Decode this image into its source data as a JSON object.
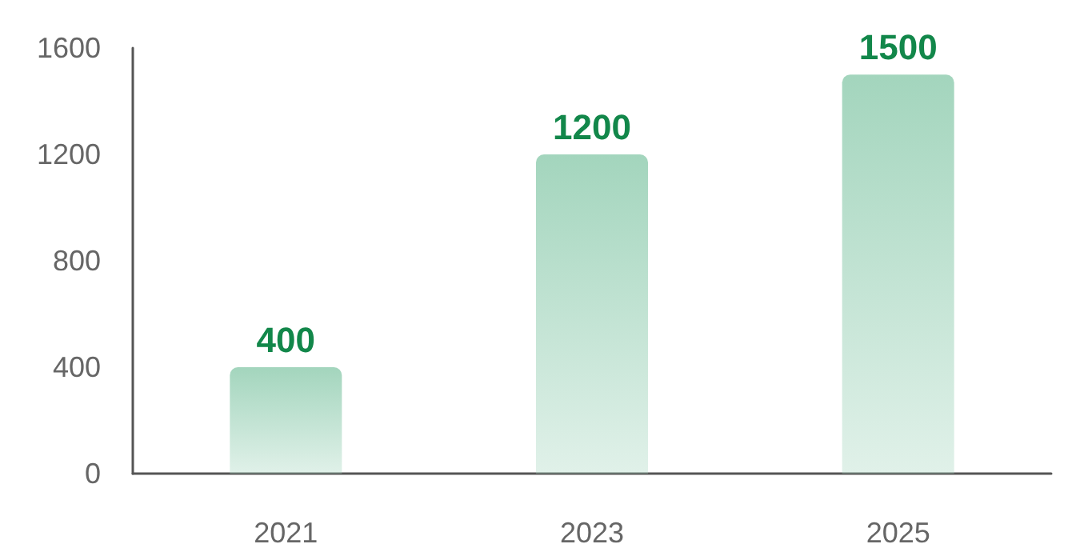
{
  "chart_data": {
    "type": "bar",
    "categories": [
      "2021",
      "2023",
      "2025"
    ],
    "values": [
      400,
      1200,
      1500
    ],
    "color": "#a3d5bd",
    "ylim": [
      0,
      1600
    ],
    "yticks": [
      0,
      400,
      800,
      1200,
      1600
    ],
    "grid": false,
    "data_labels": true
  }
}
